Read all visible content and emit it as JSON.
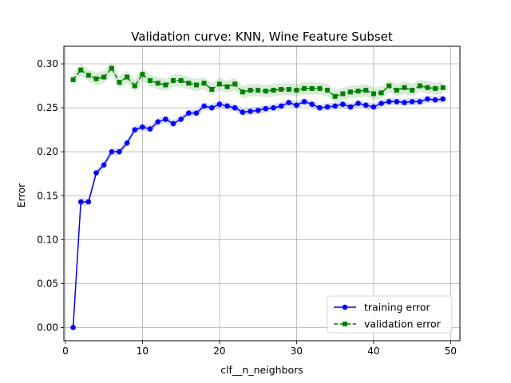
{
  "chart_data": {
    "type": "line",
    "title": "Validation curve: KNN, Wine Feature Subset",
    "xlabel": "clf__n_neighbors",
    "ylabel": "Error",
    "xlim": [
      -0.2,
      51.2
    ],
    "ylim": [
      -0.015,
      0.32
    ],
    "xticks": [
      0,
      10,
      20,
      30,
      40,
      50
    ],
    "xtick_labels": [
      "0",
      "10",
      "20",
      "30",
      "40",
      "50"
    ],
    "yticks": [
      0.0,
      0.05,
      0.1,
      0.15,
      0.2,
      0.25,
      0.3
    ],
    "ytick_labels": [
      "0.00",
      "0.05",
      "0.10",
      "0.15",
      "0.20",
      "0.25",
      "0.30"
    ],
    "grid": true,
    "legend_position": "bottom-right",
    "x": [
      1,
      2,
      3,
      4,
      5,
      6,
      7,
      8,
      9,
      10,
      11,
      12,
      13,
      14,
      15,
      16,
      17,
      18,
      19,
      20,
      21,
      22,
      23,
      24,
      25,
      26,
      27,
      28,
      29,
      30,
      31,
      32,
      33,
      34,
      35,
      36,
      37,
      38,
      39,
      40,
      41,
      42,
      43,
      44,
      45,
      46,
      47,
      48,
      49
    ],
    "series": [
      {
        "name": "training error",
        "color": "#0000ff",
        "marker": "circle",
        "linestyle": "solid",
        "band": 0.004,
        "values": [
          0.0,
          0.143,
          0.143,
          0.176,
          0.185,
          0.2,
          0.2,
          0.21,
          0.225,
          0.228,
          0.226,
          0.234,
          0.237,
          0.232,
          0.237,
          0.244,
          0.244,
          0.252,
          0.25,
          0.254,
          0.252,
          0.25,
          0.245,
          0.246,
          0.247,
          0.249,
          0.25,
          0.252,
          0.256,
          0.253,
          0.257,
          0.254,
          0.25,
          0.251,
          0.252,
          0.254,
          0.251,
          0.255,
          0.253,
          0.251,
          0.255,
          0.257,
          0.257,
          0.256,
          0.257,
          0.257,
          0.26,
          0.259,
          0.26
        ]
      },
      {
        "name": "validation error",
        "color": "#008000",
        "marker": "square",
        "linestyle": "dashed",
        "band": 0.007,
        "values": [
          0.282,
          0.293,
          0.287,
          0.283,
          0.285,
          0.295,
          0.279,
          0.285,
          0.275,
          0.288,
          0.281,
          0.278,
          0.276,
          0.281,
          0.281,
          0.278,
          0.276,
          0.278,
          0.271,
          0.277,
          0.274,
          0.277,
          0.268,
          0.27,
          0.27,
          0.269,
          0.27,
          0.271,
          0.271,
          0.27,
          0.272,
          0.272,
          0.272,
          0.27,
          0.263,
          0.266,
          0.268,
          0.269,
          0.27,
          0.266,
          0.267,
          0.275,
          0.27,
          0.273,
          0.27,
          0.275,
          0.273,
          0.272,
          0.273
        ]
      }
    ]
  }
}
